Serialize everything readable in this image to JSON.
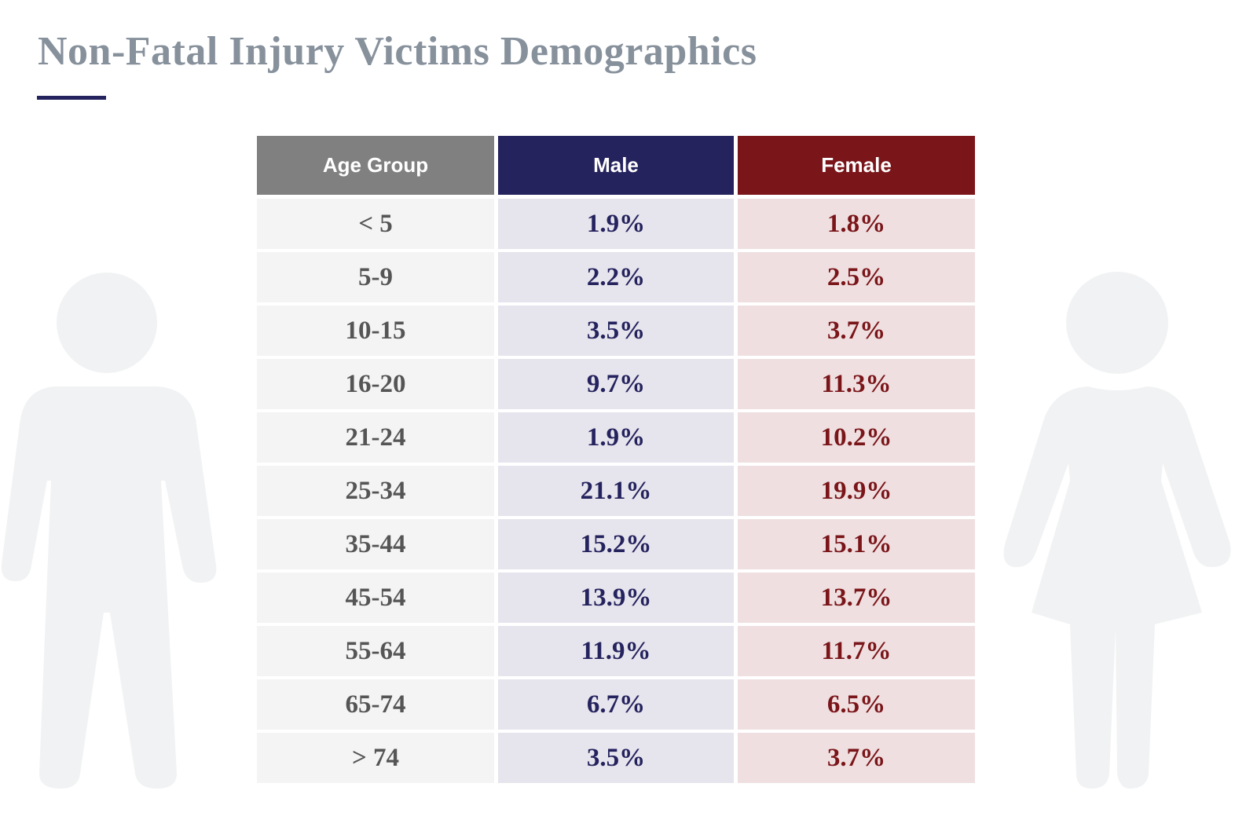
{
  "title": "Non-Fatal Injury Victims Demographics",
  "table": {
    "header": [
      "Age Group",
      "Male",
      "Female"
    ],
    "rows": [
      [
        "< 5",
        "1.9%",
        "1.8%"
      ],
      [
        "5-9",
        "2.2%",
        "2.5%"
      ],
      [
        "10-15",
        "3.5%",
        "3.7%"
      ],
      [
        "16-20",
        "9.7%",
        "11.3%"
      ],
      [
        "21-24",
        "1.9%",
        "10.2%"
      ],
      [
        "25-34",
        "21.1%",
        "19.9%"
      ],
      [
        "35-44",
        "15.2%",
        "15.1%"
      ],
      [
        "45-54",
        "13.9%",
        "13.7%"
      ],
      [
        "55-64",
        "11.9%",
        "11.7%"
      ],
      [
        "65-74",
        "6.7%",
        "6.5%"
      ],
      [
        "> 74",
        "3.5%",
        "3.7%"
      ]
    ]
  }
}
